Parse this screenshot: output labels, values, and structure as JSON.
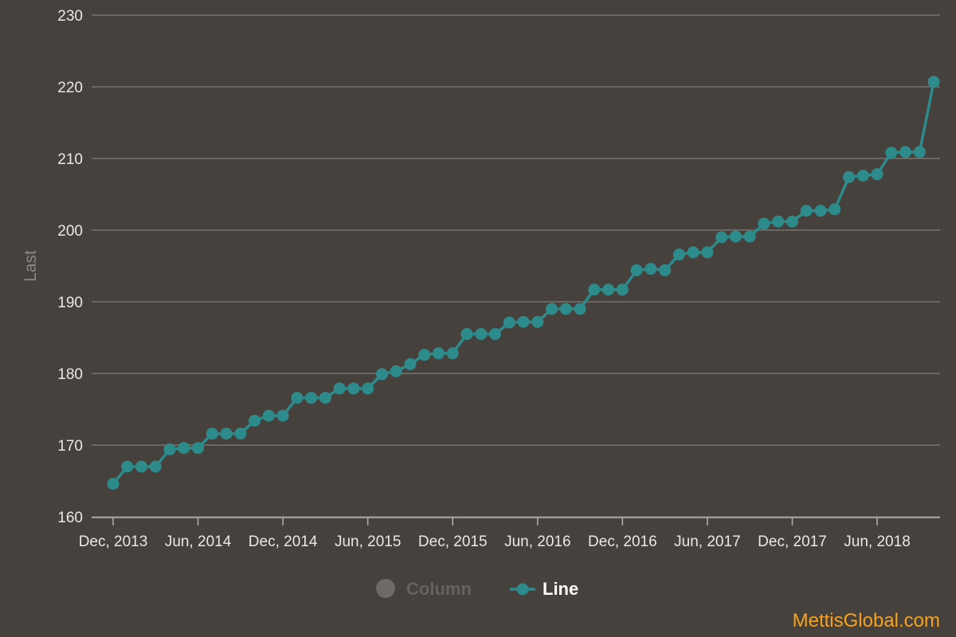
{
  "chart_data": {
    "type": "line",
    "ylabel": "Last",
    "ylim": [
      160,
      230
    ],
    "yticks": [
      160,
      170,
      180,
      190,
      200,
      210,
      220,
      230
    ],
    "grid": true,
    "x_start": "2013-12",
    "xticks": [
      {
        "index": 0,
        "label": "Dec, 2013"
      },
      {
        "index": 6,
        "label": "Jun, 2014"
      },
      {
        "index": 12,
        "label": "Dec, 2014"
      },
      {
        "index": 18,
        "label": "Jun, 2015"
      },
      {
        "index": 24,
        "label": "Dec, 2015"
      },
      {
        "index": 30,
        "label": "Jun, 2016"
      },
      {
        "index": 36,
        "label": "Dec, 2016"
      },
      {
        "index": 42,
        "label": "Jun, 2017"
      },
      {
        "index": 48,
        "label": "Dec, 2017"
      },
      {
        "index": 54,
        "label": "Jun, 2018"
      }
    ],
    "legend_position": "bottom-center",
    "legend": [
      {
        "label": "Column",
        "symbol": "circle",
        "color": "#6e6a67",
        "text_color": "#66625f"
      },
      {
        "label": "Line",
        "symbol": "line-circle",
        "color": "#2e8b8b",
        "text_color": "#ffffff"
      }
    ],
    "series": [
      {
        "name": "Line",
        "color": "#2e8b8b",
        "points": [
          [
            0,
            164.6
          ],
          [
            1,
            167.0
          ],
          [
            2,
            167.0
          ],
          [
            3,
            167.0
          ],
          [
            4,
            169.4
          ],
          [
            5,
            169.6
          ],
          [
            6,
            169.6
          ],
          [
            7,
            171.6
          ],
          [
            8,
            171.6
          ],
          [
            9,
            171.6
          ],
          [
            10,
            173.4
          ],
          [
            11,
            174.1
          ],
          [
            12,
            174.1
          ],
          [
            13,
            176.6
          ],
          [
            14,
            176.6
          ],
          [
            15,
            176.6
          ],
          [
            16,
            177.9
          ],
          [
            17,
            177.9
          ],
          [
            18,
            177.9
          ],
          [
            19,
            179.9
          ],
          [
            20,
            180.3
          ],
          [
            21,
            181.3
          ],
          [
            22,
            182.6
          ],
          [
            23,
            182.8
          ],
          [
            24,
            182.8
          ],
          [
            25,
            185.5
          ],
          [
            26,
            185.5
          ],
          [
            27,
            185.5
          ],
          [
            28,
            187.1
          ],
          [
            29,
            187.2
          ],
          [
            30,
            187.2
          ],
          [
            31,
            189.0
          ],
          [
            32,
            189.0
          ],
          [
            33,
            189.0
          ],
          [
            34,
            191.7
          ],
          [
            35,
            191.7
          ],
          [
            36,
            191.7
          ],
          [
            37,
            194.4
          ],
          [
            38,
            194.6
          ],
          [
            39,
            194.4
          ],
          [
            40,
            196.6
          ],
          [
            41,
            196.9
          ],
          [
            42,
            196.9
          ],
          [
            43,
            199.0
          ],
          [
            44,
            199.1
          ],
          [
            45,
            199.1
          ],
          [
            46,
            200.9
          ],
          [
            47,
            201.2
          ],
          [
            48,
            201.2
          ],
          [
            49,
            202.7
          ],
          [
            50,
            202.7
          ],
          [
            51,
            202.9
          ],
          [
            52,
            207.4
          ],
          [
            53,
            207.6
          ],
          [
            54,
            207.8
          ],
          [
            55,
            210.8
          ],
          [
            56,
            210.9
          ],
          [
            57,
            210.9
          ],
          [
            58,
            220.7
          ]
        ]
      }
    ]
  },
  "credit": {
    "text": "MettisGlobal.com",
    "color": "#f7a21b"
  },
  "colors": {
    "background": "#46413d",
    "grid": "#77726f",
    "axis": "#b5b0ad"
  }
}
